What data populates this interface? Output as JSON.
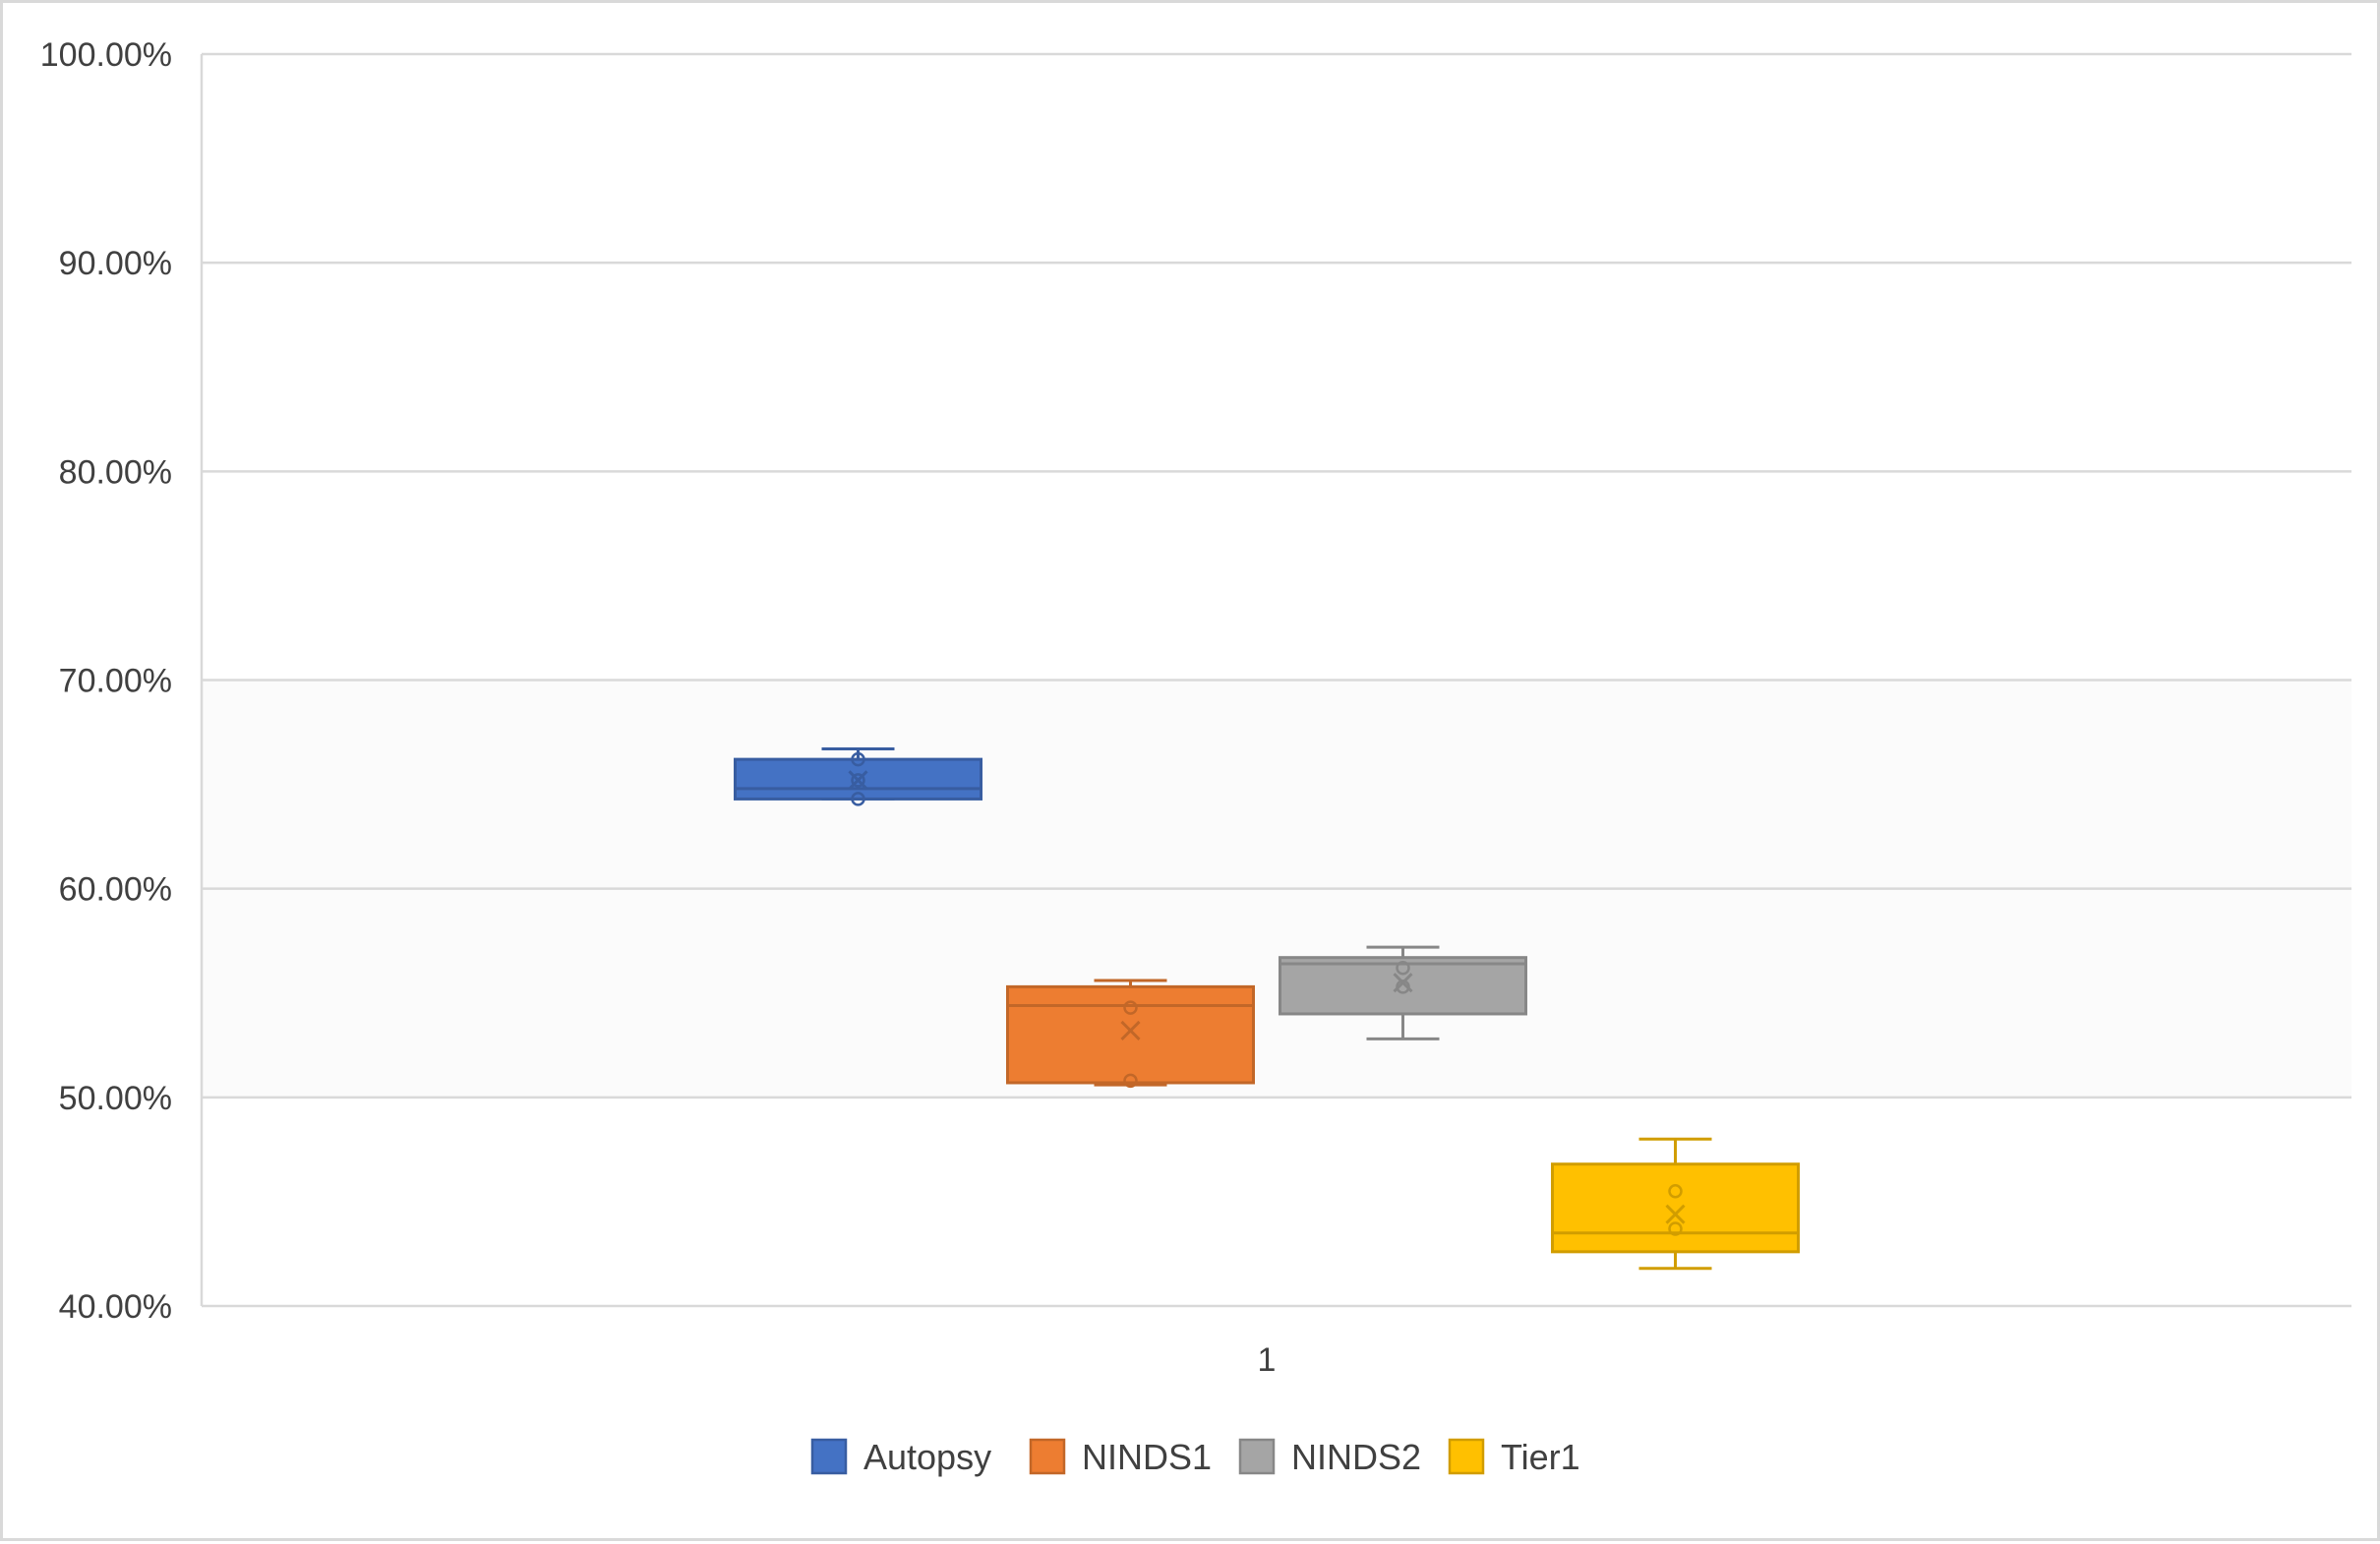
{
  "chart_data": {
    "type": "box",
    "title": "",
    "xlabel": "",
    "ylabel": "",
    "categories": [
      "1"
    ],
    "ylim": [
      0.4,
      1.0
    ],
    "yticks": [
      0.4,
      0.5,
      0.6,
      0.7,
      0.8,
      0.9,
      1.0
    ],
    "ytick_labels": [
      "40.00%",
      "50.00%",
      "60.00%",
      "70.00%",
      "80.00%",
      "90.00%",
      "100.00%"
    ],
    "grid": true,
    "legend_position": "bottom",
    "series": [
      {
        "name": "Autopsy",
        "color": "#4472c4",
        "min": 0.643,
        "q1": 0.643,
        "median": 0.648,
        "q3": 0.662,
        "max": 0.667,
        "mean": 0.652,
        "points": [
          0.643,
          0.652,
          0.662
        ]
      },
      {
        "name": "NINDS1",
        "color": "#ed7d31",
        "min": 0.506,
        "q1": 0.507,
        "median": 0.544,
        "q3": 0.553,
        "max": 0.556,
        "mean": 0.532,
        "points": [
          0.508,
          0.543
        ]
      },
      {
        "name": "NINDS2",
        "color": "#a5a5a5",
        "min": 0.528,
        "q1": 0.54,
        "median": 0.564,
        "q3": 0.567,
        "max": 0.572,
        "mean": 0.555,
        "points": [
          0.553,
          0.562
        ]
      },
      {
        "name": "Tier1",
        "color": "#ffc000",
        "min": 0.418,
        "q1": 0.426,
        "median": 0.435,
        "q3": 0.468,
        "max": 0.48,
        "mean": 0.444,
        "points": [
          0.437,
          0.455
        ]
      }
    ]
  }
}
